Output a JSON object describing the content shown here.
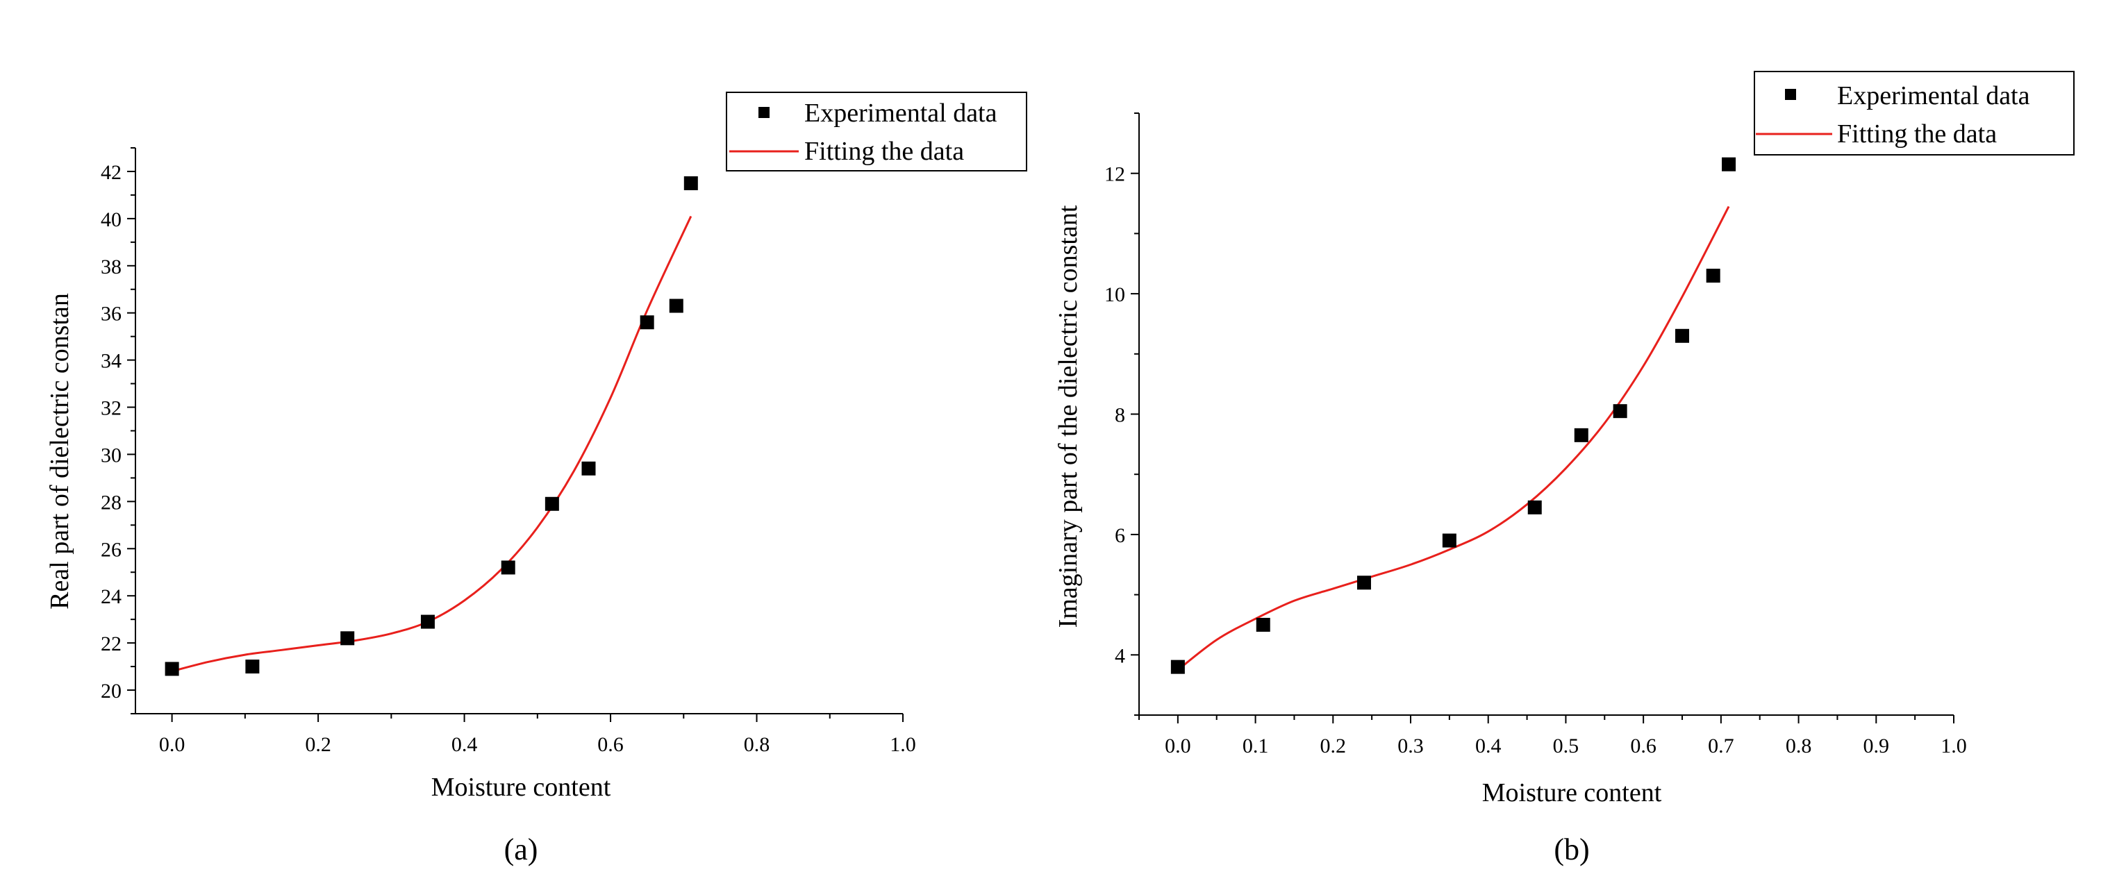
{
  "chart_data": [
    {
      "type": "scatter",
      "panel_label": "(a)",
      "xlabel": "Moisture content",
      "ylabel": "Real part of dielectric constan",
      "xlim": [
        -0.05,
        1.0
      ],
      "ylim": [
        19,
        43
      ],
      "xticks": [
        0.0,
        0.2,
        0.4,
        0.6,
        0.8,
        1.0
      ],
      "xtick_labels": [
        "0.0",
        "0.2",
        "0.4",
        "0.6",
        "0.8",
        "1.0"
      ],
      "yticks": [
        20,
        22,
        24,
        26,
        28,
        30,
        32,
        34,
        36,
        38,
        40,
        42
      ],
      "ytick_labels": [
        "20",
        "22",
        "24",
        "26",
        "28",
        "30",
        "32",
        "34",
        "36",
        "38",
        "40",
        "42"
      ],
      "legend": {
        "placement": "top-right",
        "entries": [
          "Experimental data",
          "Fitting the data"
        ]
      },
      "series": [
        {
          "name": "Experimental data",
          "kind": "scatter",
          "x": [
            0.0,
            0.11,
            0.24,
            0.35,
            0.46,
            0.52,
            0.57,
            0.65,
            0.69,
            0.71
          ],
          "y": [
            20.9,
            21.0,
            22.2,
            22.9,
            25.2,
            27.9,
            29.4,
            35.6,
            36.3,
            41.5
          ]
        },
        {
          "name": "Fitting the data",
          "kind": "line",
          "x": [
            0.0,
            0.05,
            0.1,
            0.15,
            0.2,
            0.25,
            0.3,
            0.35,
            0.4,
            0.45,
            0.5,
            0.55,
            0.6,
            0.65,
            0.71
          ],
          "y": [
            20.8,
            21.2,
            21.5,
            21.7,
            21.9,
            22.1,
            22.4,
            22.9,
            23.8,
            25.1,
            26.9,
            29.3,
            32.4,
            36.1,
            40.1
          ]
        }
      ]
    },
    {
      "type": "scatter",
      "panel_label": "(b)",
      "xlabel": "Moisture content",
      "ylabel": "Imaginary part of the dielectric constant",
      "xlim": [
        -0.05,
        1.0
      ],
      "ylim": [
        3.0,
        13.0
      ],
      "xticks": [
        0.0,
        0.1,
        0.2,
        0.3,
        0.4,
        0.5,
        0.6,
        0.7,
        0.8,
        0.9,
        1.0
      ],
      "xtick_labels": [
        "0.0",
        "0.1",
        "0.2",
        "0.3",
        "0.4",
        "0.5",
        "0.6",
        "0.7",
        "0.8",
        "0.9",
        "1.0"
      ],
      "yticks": [
        4,
        6,
        8,
        10,
        12
      ],
      "ytick_labels": [
        "4",
        "6",
        "8",
        "10",
        "12"
      ],
      "legend": {
        "placement": "top-right",
        "entries": [
          "Experimental data",
          "Fitting the data"
        ]
      },
      "series": [
        {
          "name": "Experimental data",
          "kind": "scatter",
          "x": [
            0.0,
            0.11,
            0.24,
            0.35,
            0.46,
            0.52,
            0.57,
            0.65,
            0.69,
            0.71
          ],
          "y": [
            3.8,
            4.5,
            5.2,
            5.9,
            6.45,
            7.65,
            8.05,
            9.3,
            10.3,
            12.15
          ]
        },
        {
          "name": "Fitting the data",
          "kind": "line",
          "x": [
            0.0,
            0.05,
            0.1,
            0.15,
            0.2,
            0.25,
            0.3,
            0.35,
            0.4,
            0.45,
            0.5,
            0.55,
            0.6,
            0.65,
            0.71
          ],
          "y": [
            3.75,
            4.25,
            4.6,
            4.9,
            5.1,
            5.3,
            5.5,
            5.75,
            6.05,
            6.5,
            7.1,
            7.85,
            8.8,
            9.95,
            11.45
          ]
        }
      ]
    }
  ],
  "colors": {
    "marker": "#000000",
    "fit_line": "#e8201c",
    "axis": "#000000"
  }
}
